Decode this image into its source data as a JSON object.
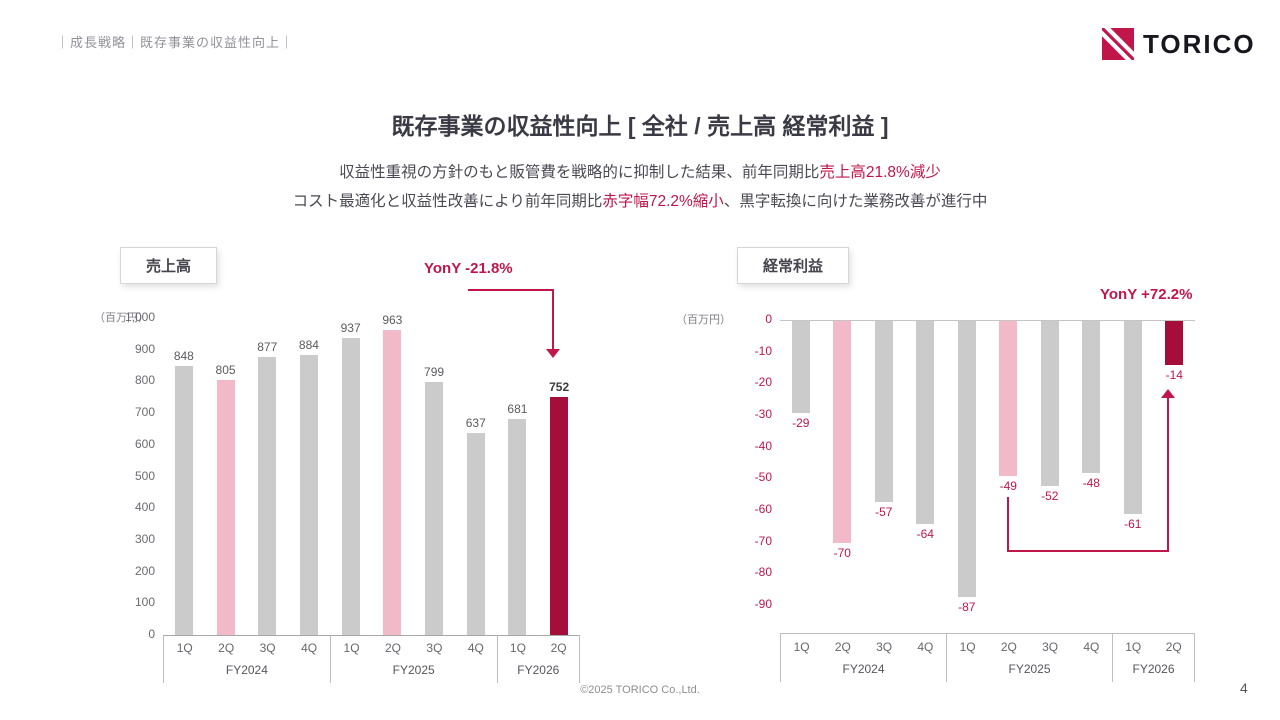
{
  "header": {
    "breadcrumb": "｜成長戦略｜既存事業の収益性向上｜",
    "logo_text": "TORICO"
  },
  "title": "既存事業の収益性向上 [ 全社 / 売上高 経常利益 ]",
  "subtitle": {
    "line1_pre": "収益性重視の方針のもと販管費を戦略的に抑制した結果、前年同期比",
    "line1_highlight": "売上高21.8%減少",
    "line2_pre": "コスト最適化と収益性改善により前年同期比",
    "line2_highlight": "赤字幅72.2%縮小",
    "line2_post": "、黒字転換に向けた業務改善が進行中"
  },
  "footer": {
    "copyright": "©2025 TORICO Co.,Ltd.",
    "page_number": "4"
  },
  "colors": {
    "accent": "#a50e3a",
    "accent_text": "#c0164a",
    "pink": "#f2b9c9",
    "gray": "#cbcbcb"
  },
  "chart_data": [
    {
      "id": "revenue",
      "type": "bar",
      "title": "売上高",
      "unit_label": "（百万円）",
      "yoy_label": "YonY -21.8%",
      "categories": [
        "1Q",
        "2Q",
        "3Q",
        "4Q",
        "1Q",
        "2Q",
        "3Q",
        "4Q",
        "1Q",
        "2Q"
      ],
      "groups": [
        {
          "label": "FY2024",
          "span": 4
        },
        {
          "label": "FY2025",
          "span": 4
        },
        {
          "label": "FY2026",
          "span": 2
        }
      ],
      "values": [
        848,
        805,
        877,
        884,
        937,
        963,
        799,
        637,
        681,
        752
      ],
      "bar_styles": [
        "gray",
        "pink",
        "gray",
        "gray",
        "gray",
        "pink",
        "gray",
        "gray",
        "gray",
        "accent"
      ],
      "ylim": [
        0,
        1000
      ],
      "ytick_labels": [
        "1,000",
        "900",
        "800",
        "700",
        "600",
        "500",
        "400",
        "300",
        "200",
        "100",
        "0"
      ],
      "legend": "none",
      "grid": false
    },
    {
      "id": "ordinary-income",
      "type": "bar",
      "title": "経常利益",
      "unit_label": "（百万円）",
      "yoy_label": "YonY +72.2%",
      "categories": [
        "1Q",
        "2Q",
        "3Q",
        "4Q",
        "1Q",
        "2Q",
        "3Q",
        "4Q",
        "1Q",
        "2Q"
      ],
      "groups": [
        {
          "label": "FY2024",
          "span": 4
        },
        {
          "label": "FY2025",
          "span": 4
        },
        {
          "label": "FY2026",
          "span": 2
        }
      ],
      "values": [
        -29,
        -70,
        -57,
        -64,
        -87,
        -49,
        -52,
        -48,
        -61,
        -14
      ],
      "bar_styles": [
        "gray",
        "pink",
        "gray",
        "gray",
        "gray",
        "pink",
        "gray",
        "gray",
        "gray",
        "accent"
      ],
      "ylim": [
        0,
        -90
      ],
      "ytick_labels": [
        "0",
        "-10",
        "-20",
        "-30",
        "-40",
        "-50",
        "-60",
        "-70",
        "-80",
        "-90"
      ],
      "legend": "none",
      "grid": false
    }
  ]
}
